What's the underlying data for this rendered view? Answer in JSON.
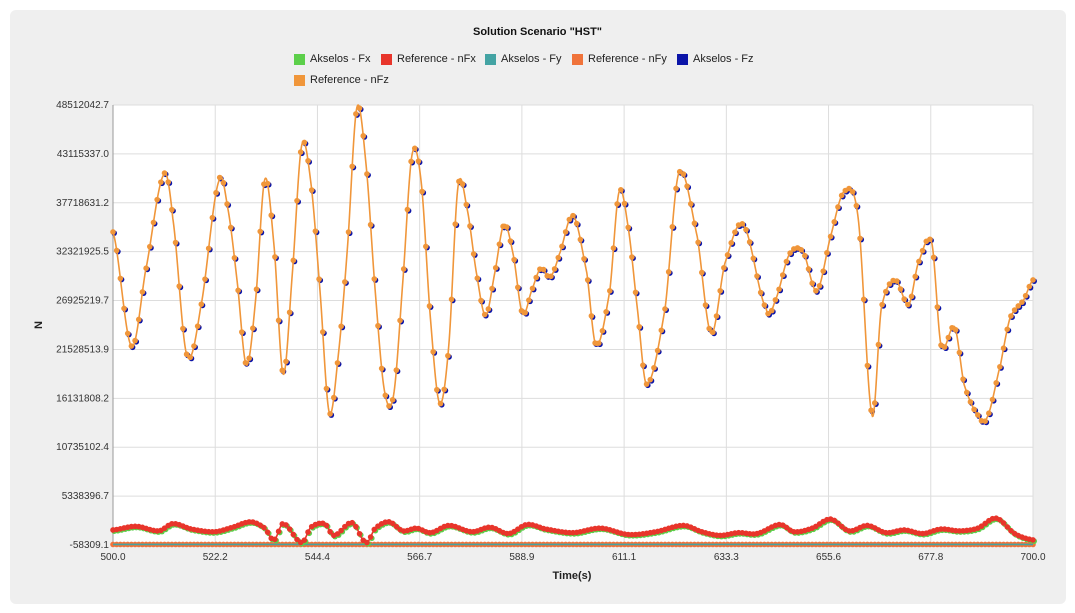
{
  "chart_data": {
    "type": "line",
    "title": "Solution Scenario \"HST\"",
    "xlabel": "Time(s)",
    "ylabel": "N",
    "xlim": [
      500.0,
      700.0
    ],
    "ylim": [
      -58309.1,
      48512042.7
    ],
    "x_ticks": [
      "500.0",
      "522.2",
      "544.4",
      "566.7",
      "588.9",
      "611.1",
      "633.3",
      "655.6",
      "677.8",
      "700.0"
    ],
    "y_ticks": [
      "48512042.7",
      "43115337.0",
      "37718631.2",
      "32321925.5",
      "26925219.7",
      "21528513.9",
      "16131808.2",
      "10735102.4",
      "5338396.7",
      "-58309.1"
    ],
    "legend": [
      {
        "name": "Akselos - Fx",
        "color": "#5ccf4a"
      },
      {
        "name": "Reference - nFx",
        "color": "#e8352b"
      },
      {
        "name": "Akselos - Fy",
        "color": "#43a3a3"
      },
      {
        "name": "Reference - nFy",
        "color": "#f0733a"
      },
      {
        "name": "Akselos - Fz",
        "color": "#0b14a8"
      },
      {
        "name": "Reference - nFz",
        "color": "#f0963a"
      }
    ],
    "series": [
      {
        "name": "Reference - nFz",
        "x": [
          500,
          504,
          507,
          511,
          513,
          516,
          519,
          523,
          525,
          527,
          529,
          531,
          533,
          535,
          537,
          539,
          541,
          543,
          545,
          547,
          549,
          551,
          553,
          555,
          557,
          559,
          561,
          563,
          565,
          567,
          569,
          571,
          573,
          575,
          577,
          579,
          581,
          583,
          585,
          587,
          589,
          591,
          593,
          595,
          597,
          600,
          603,
          605,
          608,
          610,
          612,
          614,
          616,
          620,
          623,
          627,
          630,
          633,
          637,
          642,
          644,
          647,
          650,
          653,
          656,
          659,
          662,
          665,
          667,
          670,
          673,
          675,
          678,
          680,
          683,
          685,
          688,
          690,
          693,
          695,
          698,
          700
        ],
        "values": [
          34.5,
          21.9,
          30,
          40.8,
          36,
          21,
          26,
          40.1,
          37,
          29,
          19.8,
          27,
          40.3,
          33,
          18.8,
          30,
          44,
          40,
          28,
          14.6,
          21,
          33,
          48.2,
          42,
          28,
          17,
          16.5,
          29,
          43,
          40,
          25,
          15.6,
          22,
          39.5,
          37,
          30,
          25.3,
          30,
          35.3,
          32,
          25.5,
          28,
          30.5,
          29.5,
          32,
          36.3,
          30,
          22,
          28,
          38.9,
          35,
          26,
          17.7,
          26,
          41,
          34,
          23.3,
          31,
          35.3,
          26,
          27,
          32,
          32.3,
          28,
          34,
          39,
          36,
          14.3,
          26,
          29.2,
          26.5,
          31,
          33.3,
          22,
          24,
          17.7,
          14.3,
          14,
          20,
          25,
          27,
          29.2
        ]
      },
      {
        "name": "Reference - nFx",
        "x": [
          500,
          505,
          510,
          513,
          517,
          522,
          526,
          530,
          533,
          535,
          537,
          541,
          543,
          546,
          548,
          552,
          555,
          557,
          560,
          563,
          566,
          569,
          573,
          578,
          582,
          586,
          590,
          594,
          600,
          606,
          612,
          618,
          624,
          628,
          632,
          636,
          640,
          645,
          648,
          652,
          656,
          660,
          664,
          668,
          672,
          676,
          680,
          684,
          688,
          692,
          696,
          700
        ],
        "values": [
          1.6,
          2.0,
          1.5,
          2.3,
          1.7,
          1.4,
          1.9,
          2.5,
          1.8,
          0.5,
          2.3,
          0.2,
          1.9,
          2.3,
          1.0,
          2.4,
          0.2,
          1.8,
          2.5,
          1.5,
          1.8,
          1.3,
          2.1,
          1.4,
          1.9,
          1.2,
          2.2,
          1.7,
          1.3,
          1.8,
          1.1,
          1.4,
          2.1,
          1.4,
          1.0,
          1.3,
          1.2,
          2.2,
          1.4,
          1.8,
          2.8,
          1.5,
          2.1,
          1.3,
          1.6,
          1.2,
          1.7,
          1.5,
          1.8,
          2.9,
          1.2,
          0.5
        ]
      }
    ],
    "y_units_note": "values in millions of N"
  }
}
